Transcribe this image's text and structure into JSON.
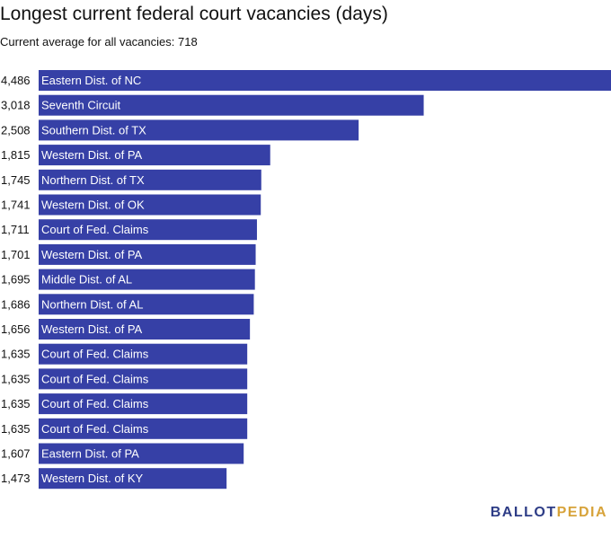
{
  "title": "Longest current federal court vacancies (days)",
  "subtitle": "Current average for all vacancies: 718",
  "logo": {
    "part1": "BALLOT",
    "part2": "PEDIA"
  },
  "colors": {
    "bar": "#3640a6",
    "bar_label": "#ffffff",
    "value_label": "#111111",
    "logo_primary": "#2d3c86",
    "logo_accent": "#d7a33a"
  },
  "chart_data": {
    "type": "bar",
    "orientation": "horizontal",
    "categories": [
      "Eastern Dist. of NC",
      "Seventh Circuit",
      "Southern Dist. of TX",
      "Western Dist. of PA",
      "Northern Dist. of TX",
      "Western Dist. of OK",
      "Court of Fed. Claims",
      "Western Dist. of PA",
      "Middle Dist. of AL",
      "Northern Dist. of AL",
      "Western Dist. of PA",
      "Court of Fed. Claims",
      "Court of Fed. Claims",
      "Court of Fed. Claims",
      "Court of Fed. Claims",
      "Eastern Dist. of PA",
      "Western Dist. of KY"
    ],
    "values": [
      4486,
      3018,
      2508,
      1815,
      1745,
      1741,
      1711,
      1701,
      1695,
      1686,
      1656,
      1635,
      1635,
      1635,
      1635,
      1607,
      1473
    ],
    "value_labels": [
      "4,486",
      "3,018",
      "2,508",
      "1,815",
      "1,745",
      "1,741",
      "1,711",
      "1,701",
      "1,695",
      "1,686",
      "1,656",
      "1,635",
      "1,635",
      "1,635",
      "1,635",
      "1,607",
      "1,473"
    ],
    "xlim": [
      0,
      4486
    ],
    "grid": false,
    "legend": "none"
  }
}
